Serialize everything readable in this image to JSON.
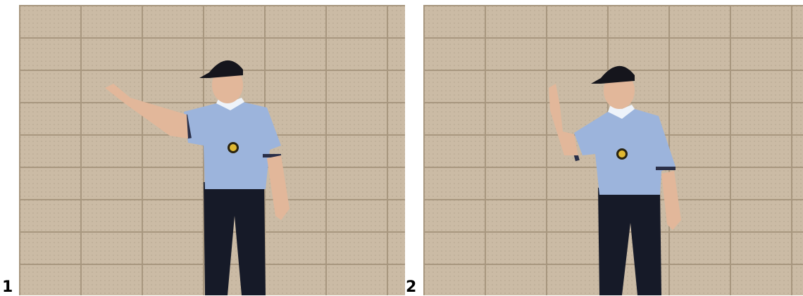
{
  "figure": {
    "panels": [
      {
        "number": "1",
        "subject": "umpire-signal-arm-extended-sideways"
      },
      {
        "number": "2",
        "subject": "umpire-signal-arm-raised-vertical"
      }
    ],
    "colors": {
      "wall": "#cbbba5",
      "grout": "#a8977f",
      "shirt": "#9cb4dc",
      "pants": "#161a28",
      "cap": "#15151c",
      "skin": "#e2b79a"
    }
  }
}
